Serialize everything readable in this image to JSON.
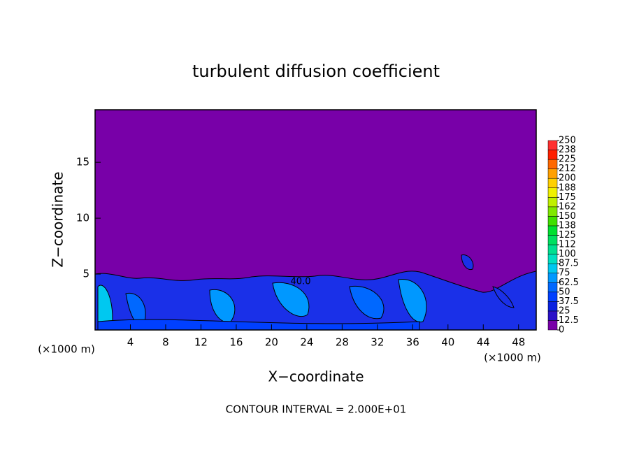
{
  "chart_data": {
    "type": "contour",
    "title": "turbulent diffusion coefficient",
    "xlabel": "X−coordinate",
    "ylabel": "Z−coordinate",
    "x_unit": "(×1000 m)",
    "x_unit_right": "(×1000 m)",
    "footnote": "CONTOUR INTERVAL = 2.000E+01",
    "contour_label": "40.0",
    "background_color": "#7800a8",
    "xlim": [
      0,
      50
    ],
    "xticks": [
      4,
      8,
      12,
      16,
      20,
      24,
      28,
      32,
      36,
      40,
      44,
      48
    ],
    "ylim": [
      0,
      19.7
    ],
    "yticks": [
      5,
      10,
      15
    ],
    "colorbar": {
      "ticks": [
        0,
        12.5,
        25,
        37.5,
        50,
        62.5,
        75,
        87.5,
        100,
        {
          "value": 112.5,
          "label": "112"
        },
        125,
        {
          "value": 137.5,
          "label": "138"
        },
        150,
        {
          "value": 162.5,
          "label": "162"
        },
        175,
        {
          "value": 187.5,
          "label": "188"
        },
        200,
        {
          "value": 212.5,
          "label": "212"
        },
        225,
        {
          "value": 237.5,
          "label": "238"
        },
        250
      ],
      "colors": [
        "#7800a8",
        "#2a10c8",
        "#0a22e0",
        "#0040ff",
        "#0068ff",
        "#0098ff",
        "#00c8f0",
        "#00e0c0",
        "#00e090",
        "#00e060",
        "#00e030",
        "#40e000",
        "#80e800",
        "#c0f000",
        "#f0f000",
        "#ffd000",
        "#ffa000",
        "#ff6800",
        "#ff2000",
        "#ff3030",
        "#f08080"
      ]
    }
  }
}
